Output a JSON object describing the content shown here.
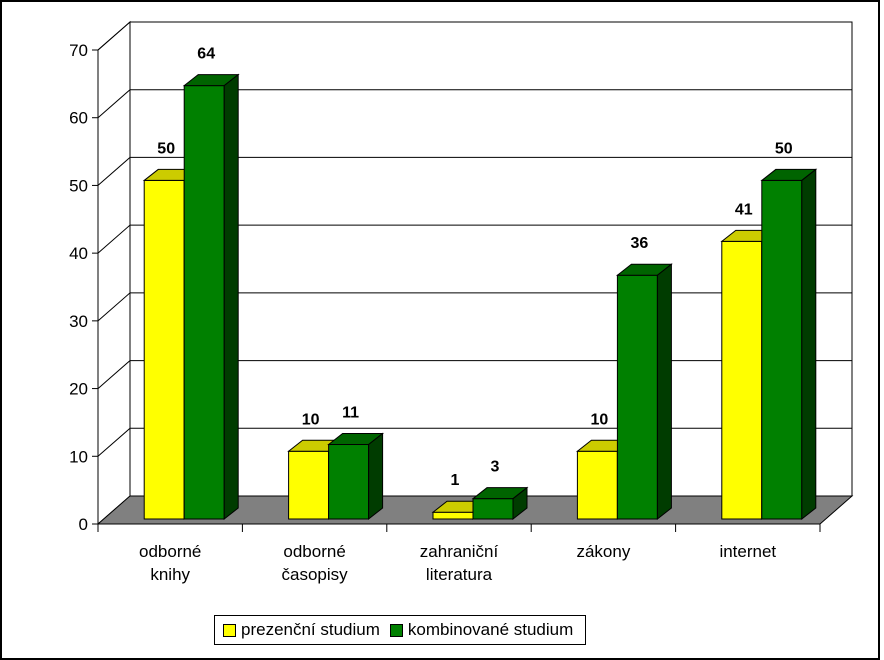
{
  "chart_data": {
    "type": "bar",
    "style": "3d-clustered-column",
    "categories": [
      [
        "odborné",
        "knihy"
      ],
      [
        "odborné",
        "časopisy"
      ],
      [
        "zahraniční",
        "literatura"
      ],
      [
        "zákony"
      ],
      [
        "internet"
      ]
    ],
    "series": [
      {
        "name": "prezenční studium",
        "values": [
          50,
          10,
          1,
          10,
          41
        ],
        "color": "#ffff00",
        "top_color": "#cccc00",
        "side_color": "#999900"
      },
      {
        "name": "kombinované studium",
        "values": [
          64,
          11,
          3,
          36,
          50
        ],
        "color": "#008000",
        "top_color": "#006400",
        "side_color": "#003c00"
      }
    ],
    "ylim": [
      0,
      70
    ],
    "yticks": [
      0,
      10,
      20,
      30,
      40,
      50,
      60,
      70
    ],
    "grid": true,
    "data_labels": true,
    "legend_position": "bottom",
    "floor_color": "#808080",
    "title": "",
    "xlabel": "",
    "ylabel": ""
  }
}
